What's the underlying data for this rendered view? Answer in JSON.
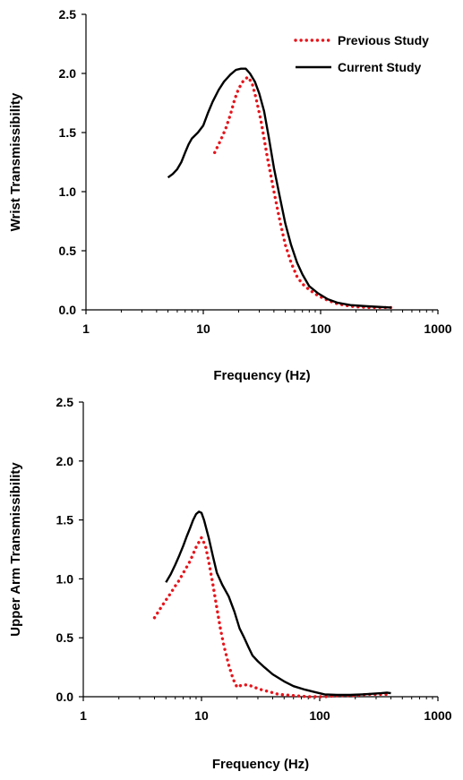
{
  "chart_data": [
    {
      "type": "line",
      "xlabel": "Frequency (Hz)",
      "ylabel": "Wrist Transmissibility",
      "x_scale": "log",
      "xlim": [
        1,
        1000
      ],
      "ylim": [
        0,
        2.5
      ],
      "x_ticks": [
        "1",
        "10",
        "100",
        "1000"
      ],
      "y_ticks": [
        "0.0",
        "0.5",
        "1.0",
        "1.5",
        "2.0",
        "2.5"
      ],
      "grid": false,
      "legend_position": "top-right",
      "series": [
        {
          "name": "Previous Study",
          "style": "dotted",
          "color": "#e8141b",
          "points": [
            [
              12.5,
              1.33
            ],
            [
              14,
              1.43
            ],
            [
              15.5,
              1.53
            ],
            [
              17,
              1.65
            ],
            [
              18.5,
              1.78
            ],
            [
              20,
              1.87
            ],
            [
              22,
              1.94
            ],
            [
              24,
              1.97
            ],
            [
              26,
              1.92
            ],
            [
              28,
              1.8
            ],
            [
              31,
              1.6
            ],
            [
              35,
              1.3
            ],
            [
              40,
              1.0
            ],
            [
              45,
              0.75
            ],
            [
              50,
              0.55
            ],
            [
              56,
              0.4
            ],
            [
              63,
              0.28
            ],
            [
              70,
              0.22
            ],
            [
              80,
              0.17
            ],
            [
              95,
              0.12
            ],
            [
              115,
              0.08
            ],
            [
              140,
              0.05
            ],
            [
              180,
              0.03
            ],
            [
              250,
              0.02
            ],
            [
              400,
              0.02
            ]
          ]
        },
        {
          "name": "Current Study",
          "style": "solid",
          "color": "#000000",
          "points": [
            [
              5,
              1.12
            ],
            [
              5.5,
              1.15
            ],
            [
              6,
              1.19
            ],
            [
              6.5,
              1.25
            ],
            [
              7,
              1.33
            ],
            [
              7.5,
              1.4
            ],
            [
              8,
              1.45
            ],
            [
              9,
              1.5
            ],
            [
              10,
              1.56
            ],
            [
              11,
              1.67
            ],
            [
              12,
              1.76
            ],
            [
              13.5,
              1.86
            ],
            [
              15,
              1.93
            ],
            [
              17,
              1.99
            ],
            [
              19,
              2.03
            ],
            [
              21,
              2.04
            ],
            [
              23,
              2.04
            ],
            [
              25,
              2.0
            ],
            [
              27.5,
              1.93
            ],
            [
              30,
              1.83
            ],
            [
              33,
              1.68
            ],
            [
              36,
              1.47
            ],
            [
              40,
              1.2
            ],
            [
              45,
              0.95
            ],
            [
              50,
              0.73
            ],
            [
              56,
              0.55
            ],
            [
              63,
              0.4
            ],
            [
              70,
              0.3
            ],
            [
              80,
              0.2
            ],
            [
              95,
              0.14
            ],
            [
              115,
              0.09
            ],
            [
              140,
              0.06
            ],
            [
              180,
              0.04
            ],
            [
              250,
              0.03
            ],
            [
              400,
              0.02
            ]
          ]
        }
      ]
    },
    {
      "type": "line",
      "xlabel": "Frequency (Hz)",
      "ylabel": "Upper Arm Transmissibility",
      "x_scale": "log",
      "xlim": [
        1,
        1000
      ],
      "ylim": [
        0,
        2.5
      ],
      "x_ticks": [
        "1",
        "10",
        "100",
        "1000"
      ],
      "y_ticks": [
        "0.0",
        "0.5",
        "1.0",
        "1.5",
        "2.0",
        "2.5"
      ],
      "grid": false,
      "series": [
        {
          "name": "Previous Study",
          "style": "dotted",
          "color": "#e8141b",
          "points": [
            [
              4,
              0.67
            ],
            [
              4.5,
              0.75
            ],
            [
              5,
              0.82
            ],
            [
              5.5,
              0.88
            ],
            [
              6,
              0.94
            ],
            [
              6.5,
              0.99
            ],
            [
              7,
              1.05
            ],
            [
              8,
              1.15
            ],
            [
              9,
              1.27
            ],
            [
              10,
              1.35
            ],
            [
              10.8,
              1.28
            ],
            [
              11.5,
              1.15
            ],
            [
              12.5,
              0.95
            ],
            [
              13.5,
              0.75
            ],
            [
              14.5,
              0.57
            ],
            [
              15.5,
              0.43
            ],
            [
              17,
              0.27
            ],
            [
              18.5,
              0.15
            ],
            [
              20,
              0.08
            ],
            [
              22,
              0.1
            ],
            [
              25,
              0.1
            ],
            [
              28,
              0.08
            ],
            [
              32,
              0.06
            ],
            [
              38,
              0.04
            ],
            [
              45,
              0.02
            ],
            [
              60,
              0.01
            ],
            [
              80,
              0.0
            ],
            [
              110,
              0.0
            ],
            [
              150,
              0.01
            ],
            [
              200,
              0.01
            ],
            [
              250,
              0.02
            ],
            [
              300,
              0.02
            ],
            [
              350,
              0.02
            ],
            [
              400,
              0.02
            ]
          ]
        },
        {
          "name": "Current Study",
          "style": "solid",
          "color": "#000000",
          "points": [
            [
              5,
              0.97
            ],
            [
              5.5,
              1.04
            ],
            [
              6,
              1.12
            ],
            [
              6.5,
              1.2
            ],
            [
              7,
              1.28
            ],
            [
              7.5,
              1.36
            ],
            [
              8,
              1.43
            ],
            [
              8.5,
              1.5
            ],
            [
              9,
              1.55
            ],
            [
              9.5,
              1.57
            ],
            [
              10,
              1.56
            ],
            [
              10.5,
              1.5
            ],
            [
              11.5,
              1.35
            ],
            [
              12.5,
              1.19
            ],
            [
              13.5,
              1.05
            ],
            [
              15,
              0.95
            ],
            [
              17,
              0.85
            ],
            [
              19,
              0.72
            ],
            [
              21,
              0.58
            ],
            [
              23,
              0.5
            ],
            [
              25,
              0.42
            ],
            [
              27,
              0.35
            ],
            [
              30,
              0.3
            ],
            [
              34,
              0.25
            ],
            [
              40,
              0.19
            ],
            [
              50,
              0.13
            ],
            [
              60,
              0.09
            ],
            [
              75,
              0.06
            ],
            [
              90,
              0.04
            ],
            [
              110,
              0.02
            ],
            [
              140,
              0.015
            ],
            [
              180,
              0.015
            ],
            [
              230,
              0.02
            ],
            [
              280,
              0.025
            ],
            [
              330,
              0.03
            ],
            [
              370,
              0.035
            ],
            [
              400,
              0.03
            ]
          ]
        }
      ]
    }
  ]
}
